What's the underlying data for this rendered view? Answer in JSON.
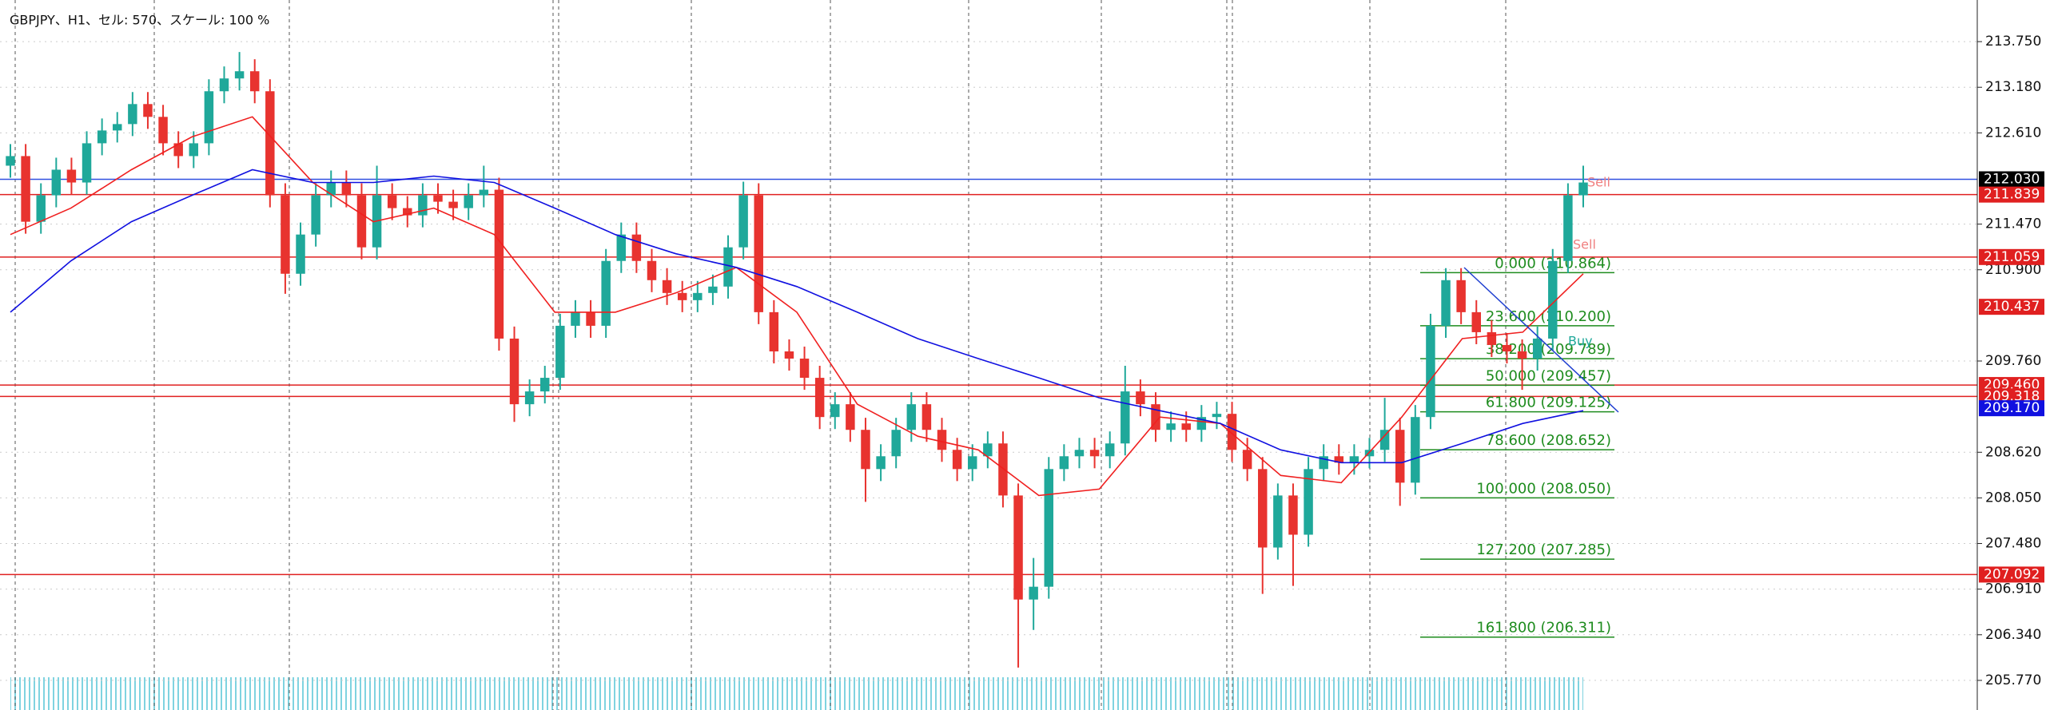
{
  "chart_data": {
    "type": "candlestick",
    "title": "GBPJPY、H1、セル: 570、スケール: 100 %",
    "ylim": [
      205.4,
      214.27
    ],
    "yticks": [
      {
        "value": 213.75,
        "label": "213.750"
      },
      {
        "value": 213.18,
        "label": "213.180"
      },
      {
        "value": 212.61,
        "label": "212.610"
      },
      {
        "value": 211.47,
        "label": "211.470"
      },
      {
        "value": 210.9,
        "label": "210.900"
      },
      {
        "value": 209.76,
        "label": "209.760"
      },
      {
        "value": 208.62,
        "label": "208.620"
      },
      {
        "value": 208.05,
        "label": "208.050"
      },
      {
        "value": 207.48,
        "label": "207.480"
      },
      {
        "value": 206.91,
        "label": "206.910"
      },
      {
        "value": 206.34,
        "label": "206.340"
      },
      {
        "value": 205.77,
        "label": "205.770"
      }
    ],
    "grid": true,
    "up_color": "#1fa89a",
    "down_color": "#e8332f",
    "open": [
      212.2,
      212.32,
      211.5,
      211.83,
      212.15,
      211.99,
      212.48,
      212.64,
      212.72,
      212.97,
      212.81,
      212.48,
      212.32,
      212.48,
      213.13,
      213.29,
      213.38,
      213.13,
      211.83,
      210.85,
      211.34,
      211.83,
      211.99,
      211.83,
      211.18,
      211.83,
      211.67,
      211.58,
      211.83,
      211.75,
      211.67,
      211.83,
      211.9,
      210.04,
      209.22,
      209.38,
      209.55,
      210.2,
      210.37,
      210.2,
      211.01,
      211.34,
      211.01,
      210.77,
      210.61,
      210.52,
      210.61,
      210.69,
      211.18,
      211.83,
      210.37,
      209.88,
      209.79,
      209.55,
      209.06,
      209.22,
      208.9,
      208.41,
      208.57,
      208.9,
      209.22,
      208.9,
      208.65,
      208.41,
      208.57,
      208.73,
      208.08,
      206.78,
      206.94,
      208.41,
      208.57,
      208.65,
      208.57,
      208.73,
      209.38,
      209.22,
      208.9,
      208.98,
      208.9,
      209.06,
      209.1,
      208.65,
      208.41,
      207.43,
      208.08,
      207.59,
      208.41,
      208.57,
      208.49,
      208.57,
      208.65,
      208.9,
      208.24,
      209.06,
      210.2,
      210.77,
      210.37,
      210.12,
      209.96,
      209.88,
      209.79,
      210.04,
      211.01,
      211.83
    ],
    "high": [
      212.47,
      212.47,
      211.98,
      212.3,
      212.3,
      212.63,
      212.79,
      212.87,
      213.12,
      213.12,
      212.96,
      212.63,
      212.63,
      213.28,
      213.44,
      213.62,
      213.53,
      213.28,
      211.98,
      211.49,
      211.98,
      212.14,
      212.14,
      211.98,
      212.2,
      211.98,
      211.82,
      211.98,
      211.98,
      211.9,
      211.98,
      212.2,
      212.05,
      210.19,
      209.53,
      209.7,
      210.35,
      210.52,
      210.52,
      211.16,
      211.49,
      211.49,
      211.16,
      210.92,
      210.76,
      210.76,
      210.84,
      211.33,
      212.0,
      211.98,
      210.52,
      210.03,
      209.94,
      209.7,
      209.37,
      209.37,
      209.05,
      208.72,
      209.05,
      209.37,
      209.37,
      209.05,
      208.8,
      208.72,
      208.88,
      208.88,
      208.23,
      207.3,
      208.56,
      208.72,
      208.8,
      208.8,
      208.88,
      209.7,
      209.53,
      209.37,
      209.13,
      209.13,
      209.21,
      209.25,
      209.25,
      208.8,
      208.56,
      208.23,
      208.23,
      208.56,
      208.72,
      208.72,
      208.72,
      208.8,
      209.3,
      209.05,
      209.21,
      210.35,
      210.92,
      210.92,
      210.52,
      210.27,
      210.11,
      210.03,
      210.19,
      211.16,
      211.98,
      212.2
    ],
    "low": [
      212.05,
      211.35,
      211.35,
      211.68,
      211.84,
      211.84,
      212.33,
      212.49,
      212.57,
      212.66,
      212.33,
      212.17,
      212.17,
      212.33,
      212.98,
      213.14,
      212.98,
      211.68,
      210.6,
      210.7,
      211.19,
      211.68,
      211.68,
      211.03,
      211.03,
      211.52,
      211.43,
      211.43,
      211.6,
      211.52,
      211.52,
      211.68,
      209.89,
      209.0,
      209.07,
      209.23,
      209.4,
      210.05,
      210.05,
      210.05,
      210.86,
      210.86,
      210.62,
      210.46,
      210.37,
      210.37,
      210.46,
      210.54,
      211.03,
      210.22,
      209.73,
      209.64,
      209.4,
      208.91,
      208.91,
      208.75,
      208.0,
      208.26,
      208.42,
      208.75,
      208.75,
      208.5,
      208.26,
      208.26,
      208.42,
      207.93,
      205.93,
      206.4,
      206.79,
      208.26,
      208.42,
      208.42,
      208.42,
      208.58,
      209.07,
      208.75,
      208.75,
      208.75,
      208.75,
      208.91,
      208.5,
      208.26,
      206.85,
      207.28,
      206.95,
      207.44,
      208.26,
      208.34,
      208.34,
      208.42,
      208.5,
      207.95,
      208.09,
      208.91,
      210.05,
      210.22,
      209.97,
      209.81,
      209.73,
      209.4,
      209.64,
      209.89,
      210.86,
      211.68
    ],
    "close": [
      212.32,
      211.5,
      211.83,
      212.15,
      211.99,
      212.48,
      212.64,
      212.72,
      212.97,
      212.81,
      212.48,
      212.32,
      212.48,
      213.13,
      213.29,
      213.38,
      213.13,
      211.83,
      210.85,
      211.34,
      211.83,
      211.99,
      211.83,
      211.18,
      211.83,
      211.67,
      211.58,
      211.83,
      211.75,
      211.67,
      211.83,
      211.9,
      210.04,
      209.22,
      209.38,
      209.55,
      210.2,
      210.37,
      210.2,
      211.01,
      211.34,
      211.01,
      210.77,
      210.61,
      210.52,
      210.61,
      210.69,
      211.18,
      211.83,
      210.37,
      209.88,
      209.79,
      209.55,
      209.06,
      209.22,
      208.9,
      208.41,
      208.57,
      208.9,
      209.22,
      208.9,
      208.65,
      208.41,
      208.57,
      208.73,
      208.08,
      206.78,
      206.94,
      208.41,
      208.57,
      208.65,
      208.57,
      208.73,
      209.38,
      209.22,
      208.9,
      208.98,
      208.9,
      209.06,
      209.1,
      208.65,
      208.41,
      207.43,
      208.08,
      207.59,
      208.41,
      208.57,
      208.49,
      208.57,
      208.65,
      208.9,
      208.24,
      209.06,
      210.2,
      210.77,
      210.37,
      210.12,
      209.96,
      209.88,
      209.79,
      210.04,
      211.01,
      211.83,
      211.99
    ],
    "lines": [
      {
        "color": "#f02020",
        "values": [
          211.34,
          211.67,
          212.15,
          212.56,
          212.81,
          211.99,
          211.5,
          211.67,
          211.34,
          210.37,
          210.37,
          210.61,
          210.93,
          210.37,
          209.22,
          208.82,
          208.65,
          208.08,
          208.16,
          209.06,
          208.98,
          208.33,
          208.24,
          209.06,
          210.04,
          210.12,
          210.85
        ]
      },
      {
        "color": "#1010e0",
        "values": [
          210.37,
          211.01,
          211.5,
          211.83,
          212.15,
          211.99,
          211.99,
          212.07,
          211.99,
          211.67,
          211.34,
          211.1,
          210.93,
          210.69,
          210.37,
          210.04,
          209.79,
          209.55,
          209.3,
          209.14,
          208.98,
          208.65,
          208.49,
          208.49,
          208.73,
          208.98,
          209.14
        ]
      }
    ],
    "levels": [
      {
        "value": 212.03,
        "label": "212.030",
        "color": "#3050e0",
        "label_bg": "#000000"
      },
      {
        "value": 211.839,
        "label": "211.839",
        "color": "#e02020",
        "label_bg": "#e02020"
      },
      {
        "value": 211.059,
        "label": "211.059",
        "color": "#e02020",
        "label_bg": "#e02020"
      },
      {
        "value": 210.437,
        "label": "210.437",
        "color": null,
        "label_bg": "#e02020"
      },
      {
        "value": 209.46,
        "label": "209.460",
        "color": "#e02020",
        "label_bg": "#e02020"
      },
      {
        "value": 209.318,
        "label": "209.318",
        "color": "#e02020",
        "label_bg": "#e02020"
      },
      {
        "value": 209.17,
        "label": "209.170",
        "color": null,
        "label_bg": "#1010e0"
      },
      {
        "value": 207.092,
        "label": "207.092",
        "color": "#e02020",
        "label_bg": "#e02020"
      }
    ],
    "fibo": {
      "color": "#1e8c1e",
      "levels": [
        {
          "value": 210.864,
          "label": "0.000 (210.864)"
        },
        {
          "value": 210.2,
          "label": "23.600 (210.200)"
        },
        {
          "value": 209.789,
          "label": "38.200 (209.789)"
        },
        {
          "value": 209.457,
          "label": "50.000 (209.457)"
        },
        {
          "value": 209.125,
          "label": "61.800 (209.125)"
        },
        {
          "value": 208.652,
          "label": "78.600 (208.652)"
        },
        {
          "value": 208.05,
          "label": "100.000 (208.050)"
        },
        {
          "value": 207.285,
          "label": "127.200 (207.285)"
        },
        {
          "value": 206.311,
          "label": "161.800 (206.311)"
        }
      ]
    },
    "annotations": [
      "Sell",
      "Sell",
      "Buy"
    ]
  }
}
